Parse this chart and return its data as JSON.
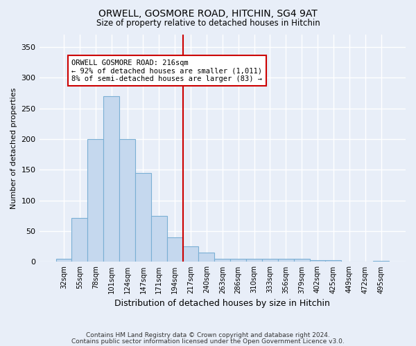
{
  "title": "ORWELL, GOSMORE ROAD, HITCHIN, SG4 9AT",
  "subtitle": "Size of property relative to detached houses in Hitchin",
  "xlabel": "Distribution of detached houses by size in Hitchin",
  "ylabel": "Number of detached properties",
  "categories": [
    "32sqm",
    "55sqm",
    "78sqm",
    "101sqm",
    "124sqm",
    "147sqm",
    "171sqm",
    "194sqm",
    "217sqm",
    "240sqm",
    "263sqm",
    "286sqm",
    "310sqm",
    "333sqm",
    "356sqm",
    "379sqm",
    "402sqm",
    "425sqm",
    "449sqm",
    "472sqm",
    "495sqm"
  ],
  "values": [
    5,
    71,
    200,
    270,
    200,
    145,
    75,
    40,
    25,
    15,
    5,
    5,
    5,
    5,
    5,
    5,
    3,
    3,
    0,
    0,
    2
  ],
  "bar_color": "#c5d8ee",
  "bar_edge_color": "#7aafd4",
  "vline_x_index": 8,
  "vline_color": "#cc0000",
  "annotation_text": "ORWELL GOSMORE ROAD: 216sqm\n← 92% of detached houses are smaller (1,011)\n8% of semi-detached houses are larger (83) →",
  "annotation_box_color": "#ffffff",
  "annotation_box_edge": "#cc0000",
  "background_color": "#e8eef8",
  "grid_color": "#ffffff",
  "footer_line1": "Contains HM Land Registry data © Crown copyright and database right 2024.",
  "footer_line2": "Contains public sector information licensed under the Open Government Licence v3.0.",
  "ylim": [
    0,
    370
  ],
  "yticks": [
    0,
    50,
    100,
    150,
    200,
    250,
    300,
    350
  ]
}
